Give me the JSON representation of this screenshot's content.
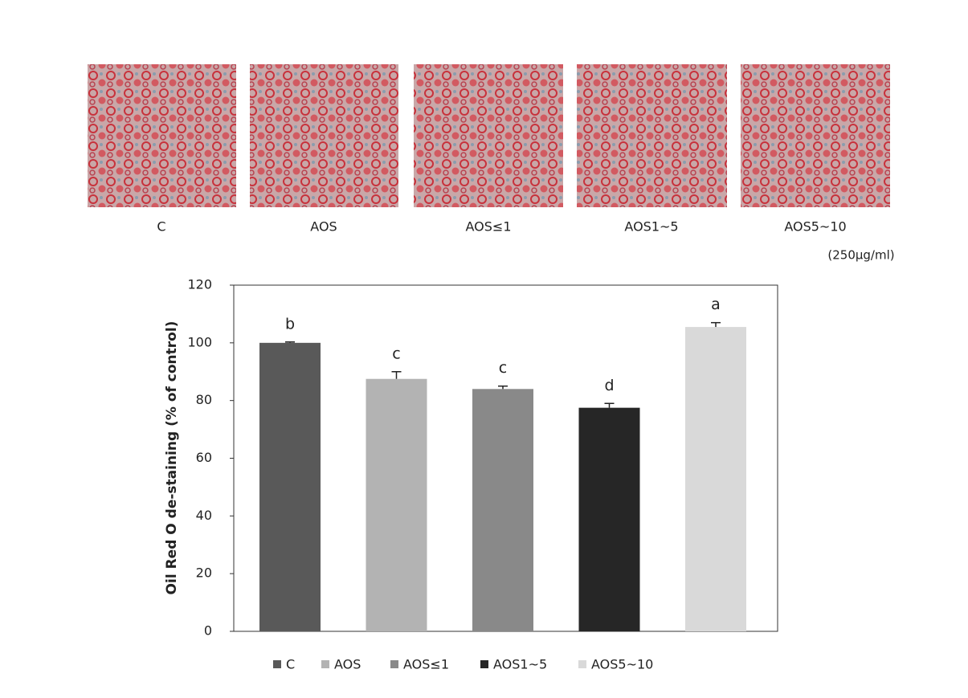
{
  "chart_data": {
    "type": "bar",
    "ylabel": "Oil Red O de-staining (% of control)",
    "annotation": "(250μg/ml)",
    "categories": [
      "C",
      "AOS",
      "AOS≤1",
      "AOS1~5",
      "AOS5~10"
    ],
    "values": [
      100,
      87.5,
      84,
      77.5,
      105.5
    ],
    "errors": [
      0.3,
      2.5,
      1,
      1.5,
      1.5
    ],
    "letters": [
      "b",
      "c",
      "c",
      "d",
      "a"
    ],
    "colors": [
      "#595959",
      "#b3b3b3",
      "#898989",
      "#262626",
      "#d9d9d9"
    ],
    "ylim": [
      0,
      120
    ],
    "yticks": [
      0,
      20,
      40,
      60,
      80,
      100,
      120
    ]
  }
}
